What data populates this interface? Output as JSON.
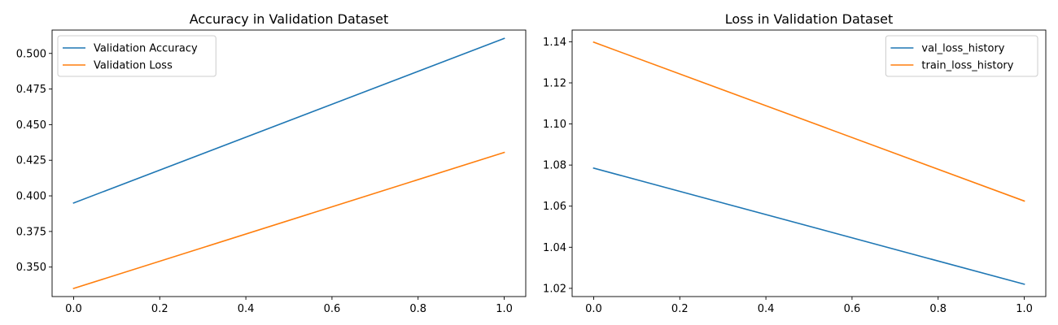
{
  "chart_data": [
    {
      "type": "line",
      "title": "Accuracy in Validation Dataset",
      "xlabel": "",
      "ylabel": "",
      "x": [
        0.0,
        1.0
      ],
      "series": [
        {
          "name": "Validation Accuracy",
          "color": "#1f77b4",
          "values": [
            0.395,
            0.5105
          ]
        },
        {
          "name": "Validation Loss",
          "color": "#ff7f0e",
          "values": [
            0.335,
            0.4305
          ]
        }
      ],
      "xlim": [
        -0.05,
        1.05
      ],
      "ylim": [
        0.3293,
        0.5164
      ],
      "xticks": [
        0.0,
        0.2,
        0.4,
        0.6,
        0.8,
        1.0
      ],
      "xtick_labels": [
        "0.0",
        "0.2",
        "0.4",
        "0.6",
        "0.8",
        "1.0"
      ],
      "yticks": [
        0.35,
        0.375,
        0.4,
        0.425,
        0.45,
        0.475,
        0.5
      ],
      "ytick_labels": [
        "0.350",
        "0.375",
        "0.400",
        "0.425",
        "0.450",
        "0.475",
        "0.500"
      ],
      "legend_position": "upper-left",
      "grid": false
    },
    {
      "type": "line",
      "title": "Loss in Validation Dataset",
      "xlabel": "",
      "ylabel": "",
      "x": [
        0.0,
        1.0
      ],
      "series": [
        {
          "name": "val_loss_history",
          "color": "#1f77b4",
          "values": [
            1.0785,
            1.022
          ]
        },
        {
          "name": "train_loss_history",
          "color": "#ff7f0e",
          "values": [
            1.1398,
            1.0625
          ]
        }
      ],
      "xlim": [
        -0.05,
        1.05
      ],
      "ylim": [
        1.016,
        1.1457
      ],
      "xticks": [
        0.0,
        0.2,
        0.4,
        0.6,
        0.8,
        1.0
      ],
      "xtick_labels": [
        "0.0",
        "0.2",
        "0.4",
        "0.6",
        "0.8",
        "1.0"
      ],
      "yticks": [
        1.02,
        1.04,
        1.06,
        1.08,
        1.1,
        1.12,
        1.14
      ],
      "ytick_labels": [
        "1.02",
        "1.04",
        "1.06",
        "1.08",
        "1.10",
        "1.12",
        "1.14"
      ],
      "legend_position": "upper-right",
      "grid": false
    }
  ]
}
